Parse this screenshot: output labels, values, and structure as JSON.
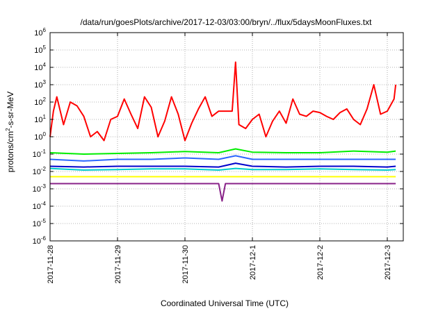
{
  "chart_data": {
    "type": "line",
    "title": "/data/run/goesPlots/archive/2017-12-03/03:00/bryn/../flux/5daysMoonFluxes.txt",
    "xlabel": "Coordinated Universal Time (UTC)",
    "ylabel_parts": [
      "protons/cm",
      "2",
      "-s-sr-MeV"
    ],
    "y_scale": "log",
    "ylim": [
      1e-06,
      1000000.0
    ],
    "y_ticks": [
      {
        "value": 1e-06,
        "base": "10",
        "exp": "-6"
      },
      {
        "value": 1e-05,
        "base": "10",
        "exp": "-5"
      },
      {
        "value": 0.0001,
        "base": "10",
        "exp": "-4"
      },
      {
        "value": 0.001,
        "base": "10",
        "exp": "-3"
      },
      {
        "value": 0.01,
        "base": "10",
        "exp": "-2"
      },
      {
        "value": 0.1,
        "base": "10",
        "exp": "-1"
      },
      {
        "value": 1,
        "base": "10",
        "exp": "0"
      },
      {
        "value": 10,
        "base": "10",
        "exp": "1"
      },
      {
        "value": 100,
        "base": "10",
        "exp": "2"
      },
      {
        "value": 1000,
        "base": "10",
        "exp": "3"
      },
      {
        "value": 10000,
        "base": "10",
        "exp": "4"
      },
      {
        "value": 100000,
        "base": "10",
        "exp": "5"
      },
      {
        "value": 1000000,
        "base": "10",
        "exp": "6"
      }
    ],
    "xlim": [
      "2017-11-28T00:00",
      "2017-12-03T03:00"
    ],
    "x_ticks": [
      "2017-11-28",
      "2017-11-29",
      "2017-11-30",
      "2017-12-1",
      "2017-12-2",
      "2017-12-3"
    ],
    "grid": true,
    "series": [
      {
        "color": "#ff0000",
        "x": [
          0,
          0.05,
          0.1,
          0.2,
          0.3,
          0.4,
          0.5,
          0.6,
          0.7,
          0.8,
          0.9,
          1.0,
          1.1,
          1.2,
          1.3,
          1.4,
          1.5,
          1.6,
          1.7,
          1.8,
          1.9,
          2.0,
          2.1,
          2.2,
          2.3,
          2.4,
          2.5,
          2.6,
          2.7,
          2.75,
          2.8,
          2.9,
          3.0,
          3.1,
          3.2,
          3.3,
          3.4,
          3.5,
          3.6,
          3.7,
          3.8,
          3.9,
          4.0,
          4.1,
          4.2,
          4.3,
          4.4,
          4.5,
          4.6,
          4.7,
          4.8,
          4.9,
          5.0,
          5.1,
          5.125
        ],
        "y": [
          1,
          30,
          200,
          5,
          100,
          60,
          15,
          1,
          2,
          0.6,
          10,
          15,
          150,
          20,
          3,
          200,
          50,
          1,
          8,
          200,
          20,
          0.6,
          6,
          40,
          200,
          15,
          30,
          30,
          30,
          20000,
          5,
          3,
          10,
          20,
          1,
          8,
          30,
          6,
          150,
          20,
          15,
          30,
          25,
          15,
          10,
          25,
          40,
          10,
          5,
          40,
          1000,
          20,
          30,
          150,
          1000
        ]
      },
      {
        "color": "#00ee00",
        "x": [
          0,
          0.5,
          1.0,
          1.5,
          2.0,
          2.5,
          2.75,
          3.0,
          3.5,
          4.0,
          4.5,
          5.0,
          5.125
        ],
        "y": [
          0.12,
          0.1,
          0.11,
          0.12,
          0.14,
          0.12,
          0.2,
          0.13,
          0.12,
          0.12,
          0.15,
          0.13,
          0.15
        ]
      },
      {
        "color": "#2a66ff",
        "x": [
          0,
          0.5,
          1.0,
          1.5,
          2.0,
          2.5,
          2.75,
          3.0,
          3.5,
          4.0,
          4.5,
          5.0,
          5.125
        ],
        "y": [
          0.05,
          0.04,
          0.05,
          0.05,
          0.06,
          0.05,
          0.08,
          0.05,
          0.05,
          0.05,
          0.05,
          0.05,
          0.05
        ]
      },
      {
        "color": "#0000cc",
        "x": [
          0,
          0.5,
          1.0,
          1.5,
          2.0,
          2.5,
          2.75,
          3.0,
          3.5,
          4.0,
          4.5,
          5.0,
          5.125
        ],
        "y": [
          0.02,
          0.018,
          0.02,
          0.02,
          0.02,
          0.018,
          0.03,
          0.02,
          0.018,
          0.02,
          0.02,
          0.018,
          0.02
        ]
      },
      {
        "color": "#00cccc",
        "x": [
          0,
          0.5,
          1.0,
          1.5,
          2.0,
          2.5,
          2.75,
          3.0,
          3.5,
          4.0,
          4.5,
          5.0,
          5.125
        ],
        "y": [
          0.015,
          0.012,
          0.013,
          0.014,
          0.014,
          0.012,
          0.015,
          0.013,
          0.013,
          0.014,
          0.013,
          0.012,
          0.013
        ]
      },
      {
        "color": "#ffff00",
        "x": [
          0,
          0.5,
          1.0,
          1.5,
          2.0,
          2.5,
          2.75,
          3.0,
          3.5,
          4.0,
          4.5,
          5.0,
          5.125
        ],
        "y": [
          0.005,
          0.005,
          0.005,
          0.005,
          0.005,
          0.005,
          0.005,
          0.005,
          0.005,
          0.005,
          0.005,
          0.005,
          0.005
        ]
      },
      {
        "color": "#882288",
        "x": [
          0,
          0.5,
          1.0,
          1.5,
          2.0,
          2.5,
          2.55,
          2.6,
          3.0,
          3.5,
          4.0,
          4.5,
          5.0,
          5.125
        ],
        "y": [
          0.002,
          0.002,
          0.002,
          0.002,
          0.002,
          0.002,
          0.0002,
          0.002,
          0.002,
          0.002,
          0.002,
          0.002,
          0.002,
          0.002
        ]
      }
    ]
  }
}
